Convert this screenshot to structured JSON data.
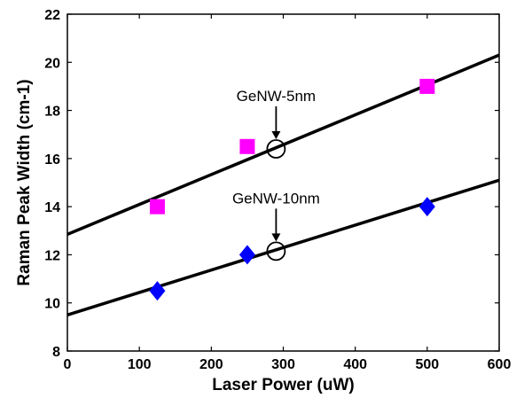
{
  "chart_data": {
    "type": "scatter",
    "title": "",
    "xlabel": "Laser Power (uW)",
    "ylabel": "Raman Peak Width (cm-1)",
    "xlim": [
      0,
      600
    ],
    "ylim": [
      8,
      22
    ],
    "xticks": [
      "0",
      "100",
      "200",
      "300",
      "400",
      "500",
      "600"
    ],
    "yticks": [
      "8",
      "10",
      "12",
      "14",
      "16",
      "18",
      "20",
      "22"
    ],
    "grid": false,
    "legend": "none",
    "series": [
      {
        "marker": "square",
        "color": "#ff00ff",
        "points": [
          {
            "x": 125,
            "y": 14.0
          },
          {
            "x": 250,
            "y": 16.5
          },
          {
            "x": 500,
            "y": 19.0
          }
        ],
        "fit_line": {
          "x": [
            0,
            600
          ],
          "y": [
            12.85,
            20.3
          ]
        }
      },
      {
        "marker": "diamond",
        "color": "#0000ff",
        "points": [
          {
            "x": 125,
            "y": 10.5
          },
          {
            "x": 250,
            "y": 12.0
          },
          {
            "x": 500,
            "y": 14.0
          }
        ],
        "fit_line": {
          "x": [
            0,
            600
          ],
          "y": [
            9.5,
            15.1
          ]
        }
      }
    ],
    "annotations": [
      {
        "text": "GeNW-5nm",
        "target": {
          "x": 290,
          "y": 16.4
        }
      },
      {
        "text": "GeNW-10nm",
        "target": {
          "x": 290,
          "y": 12.15
        }
      }
    ]
  }
}
